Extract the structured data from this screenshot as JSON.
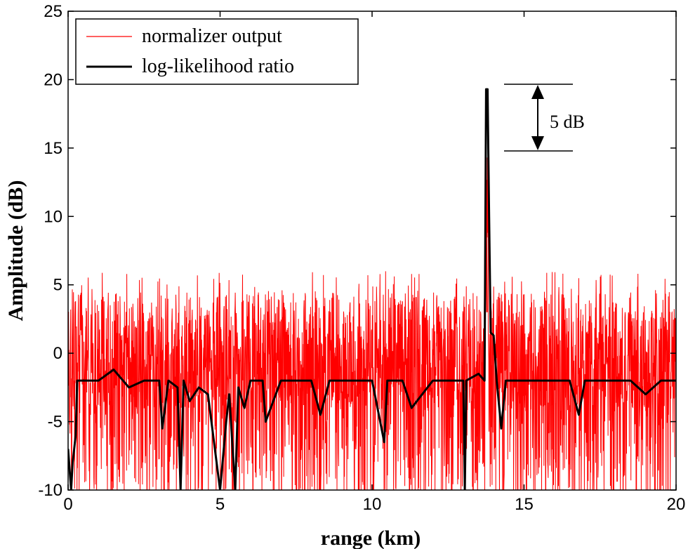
{
  "chart_data": {
    "type": "line",
    "xlabel": "range (km)",
    "ylabel": "Amplitude (dB)",
    "xlim": [
      0,
      20
    ],
    "ylim": [
      -10,
      25
    ],
    "xticks": [
      0,
      5,
      10,
      15,
      20
    ],
    "yticks": [
      -10,
      -5,
      0,
      5,
      10,
      15,
      20,
      25
    ],
    "grid": false,
    "legend_position": "top-left",
    "series": [
      {
        "name": "normalizer output",
        "color": "#ff0000",
        "description_range": {
          "baseline_min": -10,
          "baseline_max": 6
        },
        "x": [
          0,
          0.5,
          1,
          1.5,
          2,
          2.5,
          3,
          3.5,
          4,
          4.5,
          5,
          5.5,
          6,
          6.5,
          7,
          7.5,
          8,
          8.5,
          9,
          9.5,
          10,
          10.5,
          11,
          11.5,
          12,
          12.5,
          13,
          13.5,
          13.7,
          13.75,
          13.8,
          13.9,
          14,
          14.5,
          15,
          15.5,
          16,
          16.5,
          17,
          17.5,
          18,
          18.5,
          19,
          19.5,
          20
        ],
        "y": [
          4,
          -8,
          5,
          -7,
          4,
          -9,
          5,
          -6,
          4,
          -8,
          5,
          -7,
          4,
          -9,
          5,
          -7,
          4,
          -8,
          5,
          -7,
          4,
          -8,
          5,
          -7,
          4,
          -8,
          5,
          -6,
          3,
          14.3,
          5,
          2,
          4,
          -8,
          5,
          -7,
          4,
          -9,
          5,
          -7,
          4,
          -8,
          5,
          -7,
          4
        ]
      },
      {
        "name": "log-likelihood ratio",
        "color": "#000000",
        "x": [
          0,
          0.1,
          0.15,
          0.25,
          0.3,
          0.5,
          1,
          1.5,
          2,
          2.5,
          3,
          3.1,
          3.3,
          3.6,
          3.7,
          3.8,
          4,
          4.3,
          4.6,
          5,
          5.2,
          5.3,
          5.5,
          5.6,
          5.8,
          6,
          6.4,
          6.5,
          7,
          7.5,
          8,
          8.3,
          8.6,
          9,
          9.5,
          10,
          10.4,
          10.5,
          11,
          11.3,
          12,
          12.5,
          13,
          13.05,
          13.1,
          13.5,
          13.7,
          13.75,
          13.8,
          13.85,
          13.9,
          14,
          14.1,
          14.25,
          14.4,
          15,
          15.5,
          16,
          16.5,
          16.8,
          17,
          17.5,
          18,
          18.5,
          19,
          19.5,
          20
        ],
        "y": [
          -7,
          -10,
          -8,
          -6,
          -2,
          -2,
          -2,
          -1.2,
          -2.5,
          -2,
          -2,
          -5.5,
          -2,
          -2.5,
          -10,
          -2,
          -3.5,
          -2.5,
          -3,
          -10,
          -5,
          -3,
          -10,
          -2.5,
          -4,
          -2,
          -2,
          -5,
          -2,
          -2,
          -2,
          -4.5,
          -2,
          -2,
          -2,
          -2,
          -6.5,
          -2,
          -2,
          -4,
          -2,
          -2,
          -2,
          -10,
          -2,
          -1.5,
          -2,
          19.3,
          19.3,
          10,
          1.5,
          1.3,
          -2,
          -5.5,
          -2,
          -2,
          -2,
          -2,
          -2,
          -4.5,
          -2,
          -2,
          -2,
          -2,
          -3,
          -2,
          -2
        ]
      }
    ],
    "annotation": {
      "text": "5 dB",
      "y_top": 19.5,
      "y_bottom": 14.7,
      "x": 15.4
    }
  }
}
